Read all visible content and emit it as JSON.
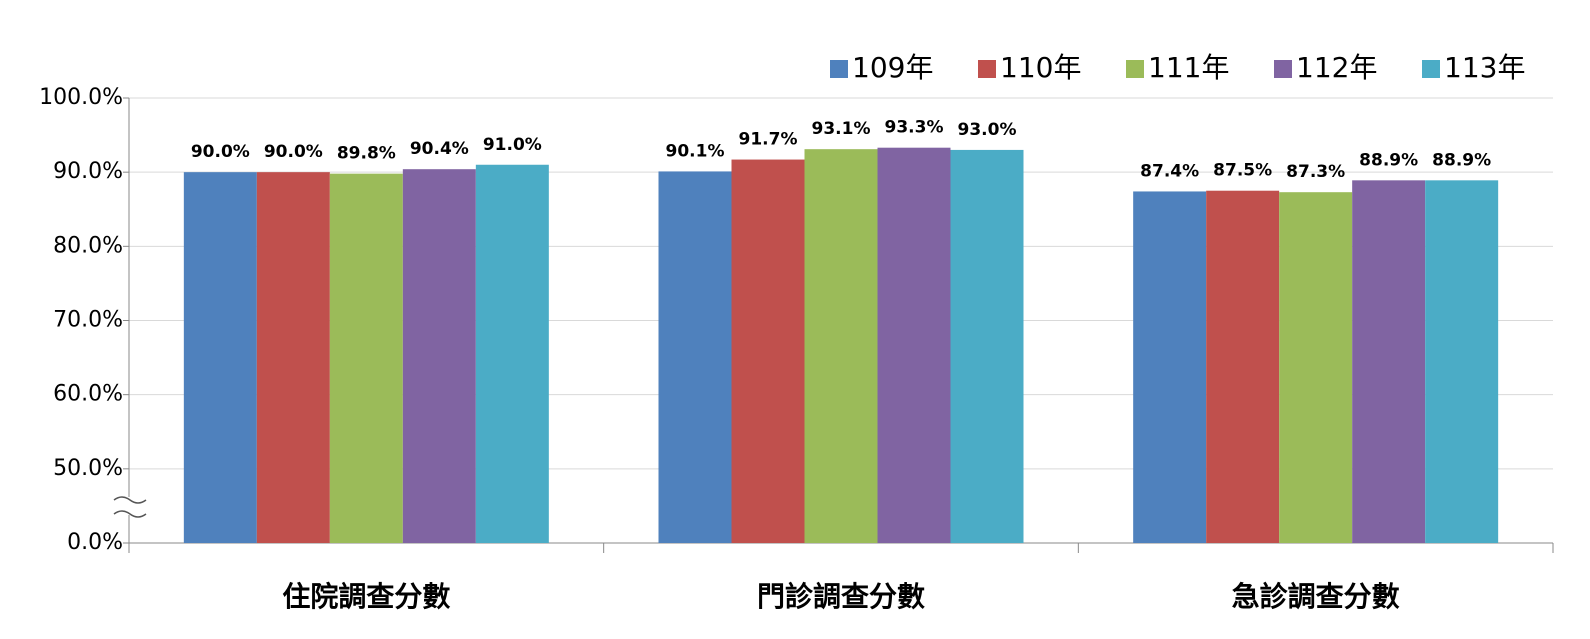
{
  "chart_data": {
    "type": "bar",
    "categories": [
      "住院調查分數",
      "門診調查分數",
      "急診調查分數"
    ],
    "series": [
      {
        "name": "109年",
        "color": "#4f81bd",
        "values": [
          90.0,
          90.1,
          87.4
        ],
        "value_labels": [
          "90.0%",
          "90.1%",
          "87.4%"
        ]
      },
      {
        "name": "110年",
        "color": "#c0504d",
        "values": [
          90.0,
          91.7,
          87.5
        ],
        "value_labels": [
          "90.0%",
          "91.7%",
          "87.5%"
        ]
      },
      {
        "name": "111年",
        "color": "#9bbb59",
        "values": [
          89.8,
          93.1,
          87.3
        ],
        "value_labels": [
          "89.8%",
          "93.1%",
          "87.3%"
        ]
      },
      {
        "name": "112年",
        "color": "#8064a2",
        "values": [
          90.4,
          93.3,
          88.9
        ],
        "value_labels": [
          "90.4%",
          "93.3%",
          "88.9%"
        ]
      },
      {
        "name": "113年",
        "color": "#4bacc6",
        "values": [
          91.0,
          93.0,
          88.9
        ],
        "value_labels": [
          "91.0%",
          "93.0%",
          "88.9%"
        ]
      }
    ],
    "ylim": [
      0,
      100
    ],
    "y_break": [
      0,
      50
    ],
    "yticks": [
      {
        "value": 0,
        "label": "0.0%"
      },
      {
        "value": 50,
        "label": "50.0%"
      },
      {
        "value": 60,
        "label": "60.0%"
      },
      {
        "value": 70,
        "label": "70.0%"
      },
      {
        "value": 80,
        "label": "80.0%"
      },
      {
        "value": 90,
        "label": "90.0%"
      },
      {
        "value": 100,
        "label": "100.0%"
      }
    ],
    "grid": true,
    "legend": "top-right"
  }
}
